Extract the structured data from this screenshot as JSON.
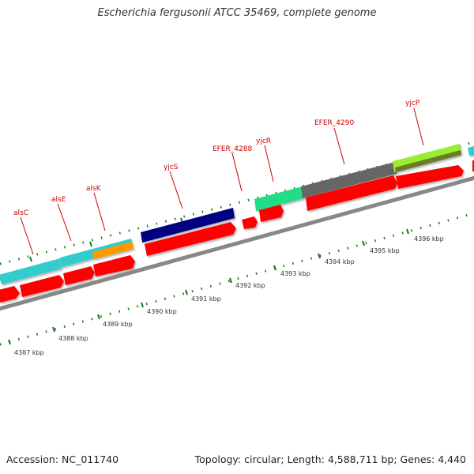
{
  "title": "Escherichia fergusonii ATCC 35469, complete genome",
  "footer": {
    "accession": "Accession: NC_011740",
    "topology": "Topology: circular; Length: 4,588,711 bp; Genes: 4,440"
  },
  "kbp_labels": [
    "4387 kbp",
    "4388 kbp",
    "4389 kbp",
    "4390 kbp",
    "4391 kbp",
    "4392 kbp",
    "4393 kbp",
    "4394 kbp",
    "4395 kbp",
    "4396 kbp"
  ],
  "gene_labels": [
    "alsC",
    "alsE",
    "alsK",
    "yjcS",
    "EFER_4288",
    "yjcR",
    "EFER_4290",
    "yjcP"
  ],
  "colors": {
    "cds": "#ff0000",
    "label": "#cc0000",
    "tick": "#1a7a1a",
    "backbone": "#888888",
    "cyan": "#33cccc",
    "orange": "#ff9900",
    "navy": "#000080",
    "seagreen": "#22dd88",
    "gray": "#666666",
    "lime": "#99ee33"
  }
}
